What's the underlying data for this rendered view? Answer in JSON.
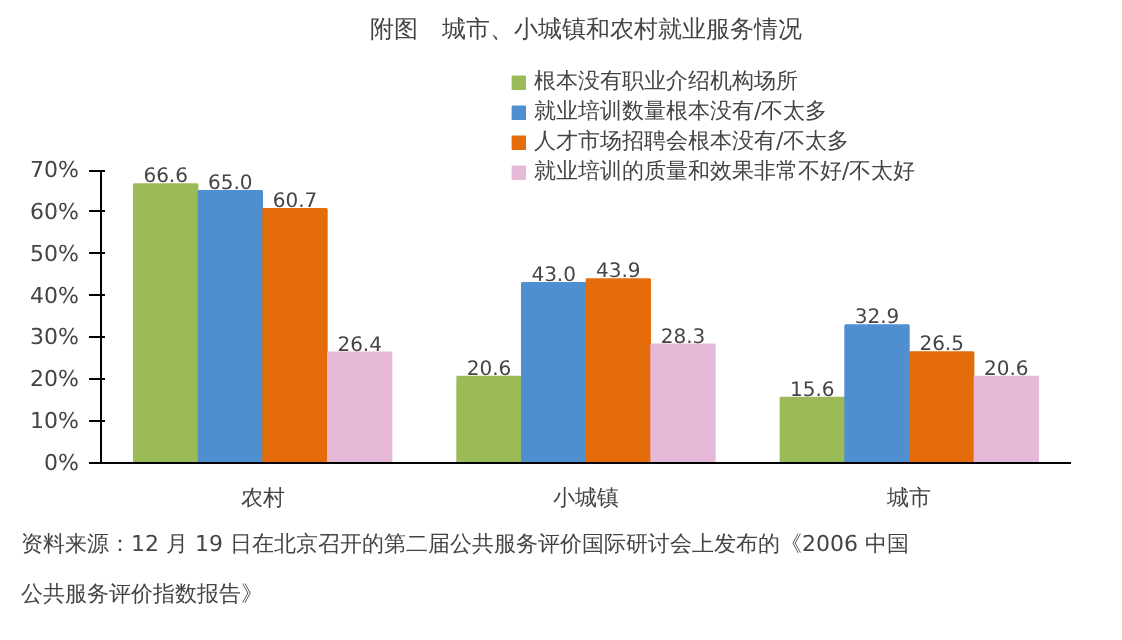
{
  "chart_data": {
    "type": "bar",
    "title": "附图　城市、小城镇和农村就业服务情况",
    "categories": [
      "农村",
      "小城镇",
      "城市"
    ],
    "series": [
      {
        "name": "根本没有职业介绍机构场所",
        "color": "#9bbb59",
        "values": [
          66.6,
          20.6,
          15.6
        ],
        "value_labels": [
          "66.6",
          "20.6",
          "15.6"
        ]
      },
      {
        "name": "就业培训数量根本没有/不太多",
        "color": "#4f8fd0",
        "values": [
          65.0,
          43.0,
          32.9
        ],
        "value_labels": [
          "65.0",
          "43.0",
          "32.9"
        ]
      },
      {
        "name": "人才市场招聘会根本没有/不太多",
        "color": "#e46c0a",
        "values": [
          60.7,
          43.9,
          26.5
        ],
        "value_labels": [
          "60.7",
          "43.9",
          "26.5"
        ]
      },
      {
        "name": "就业培训的质量和效果非常不好/不太好",
        "color": "#e6b9d8",
        "values": [
          26.4,
          28.3,
          20.6
        ],
        "value_labels": [
          "26.4",
          "28.3",
          "20.6"
        ]
      }
    ],
    "ylim": [
      0,
      70
    ],
    "yticks": [
      {
        "value": 0,
        "label": "0%"
      },
      {
        "value": 10,
        "label": "10%"
      },
      {
        "value": 20,
        "label": "20%"
      },
      {
        "value": 30,
        "label": "30%"
      },
      {
        "value": 40,
        "label": "40%"
      },
      {
        "value": 50,
        "label": "50%"
      },
      {
        "value": 60,
        "label": "60%"
      },
      {
        "value": 70,
        "label": "70%"
      }
    ],
    "legend": "top right",
    "grid": false,
    "annotations": [
      "资料来源：12 月 19 日在北京召开的第二届公共服务评价国际研讨会上发布的《2006 中国公共服务评价指数报告》"
    ]
  }
}
